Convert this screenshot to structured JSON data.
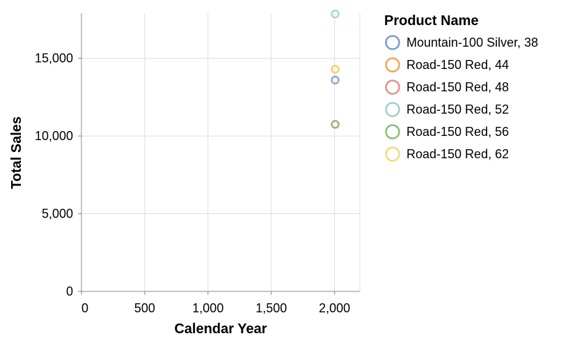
{
  "chart_data": {
    "type": "scatter",
    "xlabel": "Calendar Year",
    "ylabel": "Total Sales",
    "xlim": [
      0,
      2200
    ],
    "ylim": [
      0,
      17900
    ],
    "x_ticks": [
      0,
      500,
      1000,
      1500,
      2000
    ],
    "x_tick_labels": [
      "0",
      "500",
      "1,000",
      "1,500",
      "2,000"
    ],
    "y_ticks": [
      0,
      5000,
      10000,
      15000
    ],
    "y_tick_labels": [
      "0",
      "5,000",
      "10,000",
      "15,000"
    ],
    "grid": true,
    "legend": {
      "title": "Product Name",
      "placement": "right"
    },
    "series": [
      {
        "name": "Mountain-100 Silver, 38",
        "color": "#7b9cc4",
        "points": [
          {
            "x": 2005,
            "y": 13600
          }
        ]
      },
      {
        "name": "Road-150 Red, 44",
        "color": "#f4a45a",
        "points": [
          {
            "x": 2005,
            "y": 14300
          }
        ]
      },
      {
        "name": "Road-150 Red, 48",
        "color": "#e88e8e",
        "points": [
          {
            "x": 2005,
            "y": 10750
          }
        ]
      },
      {
        "name": "Road-150 Red, 52",
        "color": "#9fcfcb",
        "points": [
          {
            "x": 2005,
            "y": 17850
          }
        ]
      },
      {
        "name": "Road-150 Red, 56",
        "color": "#88bd7a",
        "points": [
          {
            "x": 2005,
            "y": 10750
          }
        ]
      },
      {
        "name": "Road-150 Red, 62",
        "color": "#f0da7a",
        "points": [
          {
            "x": 2005,
            "y": 14300
          }
        ]
      }
    ]
  }
}
